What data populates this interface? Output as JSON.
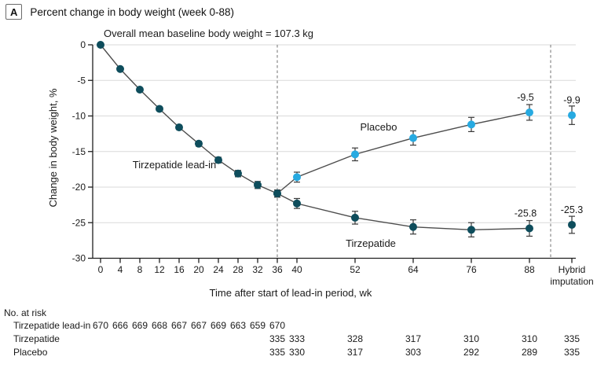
{
  "panel": {
    "label": "A",
    "title": "Percent change in body weight (week 0-88)"
  },
  "chart_data": {
    "type": "line",
    "annotation": "Overall mean baseline body weight = 107.3 kg",
    "xlabel": "Time after start of lead-in period, wk",
    "ylabel": "Change in body weight, %",
    "ylim": [
      -30,
      0
    ],
    "yticks": [
      0,
      -5,
      -10,
      -15,
      -20,
      -25,
      -30
    ],
    "xticks": [
      0,
      4,
      8,
      12,
      16,
      20,
      24,
      28,
      32,
      36,
      40,
      52,
      64,
      76,
      88
    ],
    "x_final_label": [
      "Hybrid",
      "imputation"
    ],
    "grid": true,
    "dashed_verticals_weeks": [
      36,
      "pre-hybrid"
    ],
    "series": [
      {
        "name": "Tirzepatide lead-in",
        "key": "leadin",
        "color": "#0e4d5c",
        "x": [
          0,
          4,
          8,
          12,
          16,
          20,
          24,
          28,
          32,
          36
        ],
        "y": [
          0,
          -3.4,
          -6.3,
          -9.0,
          -11.6,
          -13.9,
          -16.2,
          -18.1,
          -19.7,
          -20.9
        ],
        "err": [
          0.1,
          0.15,
          0.2,
          0.25,
          0.3,
          0.35,
          0.4,
          0.45,
          0.5,
          0.5
        ]
      },
      {
        "name": "Tirzepatide",
        "key": "tirzepatide",
        "color": "#0e4d5c",
        "x": [
          36,
          40,
          52,
          64,
          76,
          88
        ],
        "y": [
          -20.9,
          -22.3,
          -24.3,
          -25.6,
          -26.0,
          -25.8
        ],
        "err": [
          0.5,
          0.7,
          0.9,
          1.0,
          1.0,
          1.1
        ],
        "final_label": "-25.8",
        "hybrid": {
          "y": -25.3,
          "err": 1.2,
          "label": "-25.3"
        }
      },
      {
        "name": "Placebo",
        "key": "placebo",
        "color": "#27aae1",
        "x": [
          36,
          40,
          52,
          64,
          76,
          88
        ],
        "y": [
          -20.9,
          -18.6,
          -15.4,
          -13.1,
          -11.2,
          -9.5
        ],
        "err": [
          0.5,
          0.7,
          0.9,
          1.0,
          1.0,
          1.1
        ],
        "final_label": "-9.5",
        "hybrid": {
          "y": -9.9,
          "err": 1.3,
          "label": "-9.9"
        }
      }
    ],
    "series_labels": {
      "leadin": "Tirzepatide lead-in",
      "placebo": "Placebo",
      "tirzepatide": "Tirzepatide"
    }
  },
  "risk_table": {
    "title": "No. at risk",
    "rows": [
      {
        "label": "Tirzepatide lead-in",
        "weeks": [
          0,
          4,
          8,
          12,
          16,
          20,
          24,
          28,
          32,
          36
        ],
        "values": [
          670,
          666,
          669,
          668,
          667,
          667,
          669,
          663,
          659,
          670
        ]
      },
      {
        "label": "Tirzepatide",
        "weeks": [
          36,
          40,
          52,
          64,
          76,
          88,
          "hybrid"
        ],
        "values": [
          335,
          333,
          328,
          317,
          310,
          310,
          335
        ]
      },
      {
        "label": "Placebo",
        "weeks": [
          36,
          40,
          52,
          64,
          76,
          88,
          "hybrid"
        ],
        "values": [
          335,
          330,
          317,
          303,
          292,
          289,
          335
        ]
      }
    ]
  }
}
